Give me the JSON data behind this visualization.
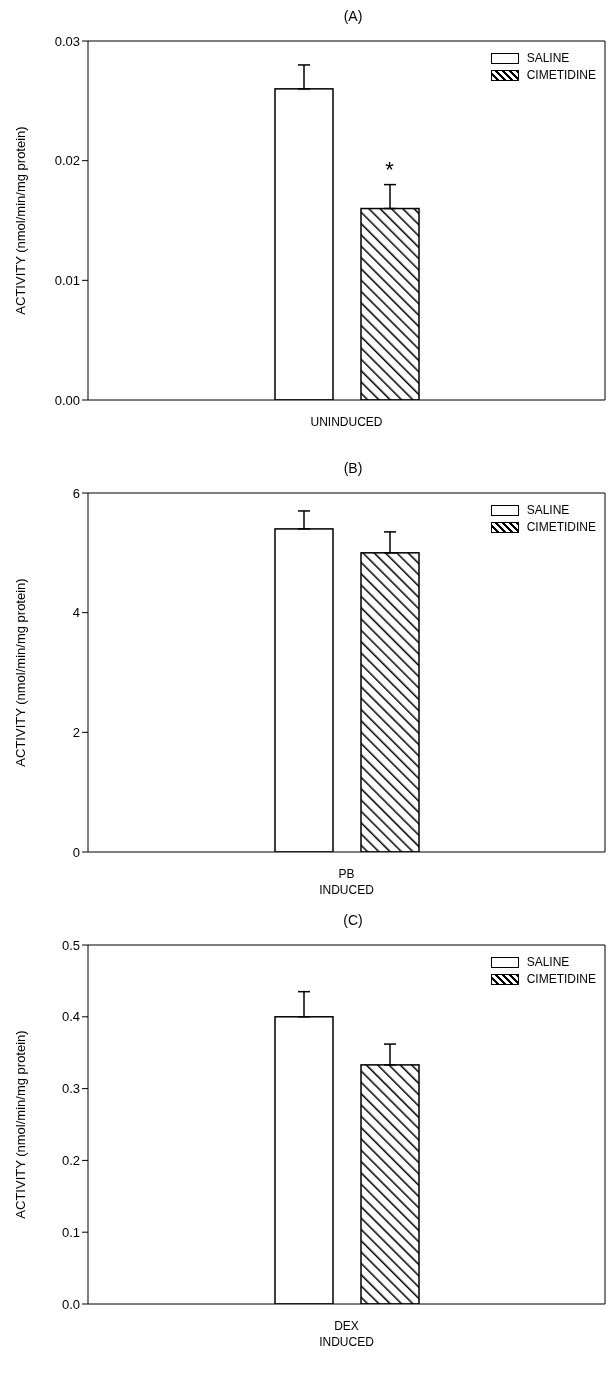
{
  "chart_data": [
    {
      "type": "bar",
      "title": "(A)",
      "ylabel": "ACTIVITY (nmol/min/mg protein)",
      "categories": [
        "UNINDUCED"
      ],
      "series": [
        {
          "name": "SALINE",
          "color": "#ffffff",
          "values": [
            0.026
          ],
          "errors": [
            [
              0.026,
              0.028
            ]
          ]
        },
        {
          "name": "CIMETIDINE",
          "color": "#000000",
          "values": [
            0.016
          ],
          "errors": [
            [
              0.016,
              0.018
            ]
          ]
        }
      ],
      "ylim": [
        0,
        0.03
      ],
      "yticks": [
        {
          "value": 0,
          "label": "0.00"
        },
        {
          "value": 0.01,
          "label": "0.01"
        },
        {
          "value": 0.02,
          "label": "0.02"
        },
        {
          "value": 0.03,
          "label": "0.03"
        }
      ],
      "legend": "top right",
      "annotations": [
        "*"
      ]
    },
    {
      "type": "bar",
      "title": "(B)",
      "ylabel": "ACTIVITY (nmol/min/mg protein)",
      "categories": [
        "PB INDUCED"
      ],
      "series": [
        {
          "name": "SALINE",
          "color": "#ffffff",
          "values": [
            5.4
          ],
          "errors": [
            [
              5.4,
              5.7
            ]
          ]
        },
        {
          "name": "CIMETIDINE",
          "color": "#000000",
          "values": [
            5.0
          ],
          "errors": [
            [
              5.0,
              5.35
            ]
          ]
        }
      ],
      "ylim": [
        0,
        6
      ],
      "yticks": [
        0,
        2,
        4,
        6
      ],
      "legend": "top right"
    },
    {
      "type": "bar",
      "title": "(C)",
      "ylabel": "ACTIVITY (nmol/min/mg protein)",
      "categories": [
        "DEX INDUCED"
      ],
      "series": [
        {
          "name": "SALINE",
          "color": "#ffffff",
          "values": [
            0.4
          ],
          "errors": [
            [
              0.4,
              0.435
            ]
          ]
        },
        {
          "name": "CIMETIDINE",
          "color": "#000000",
          "values": [
            0.333
          ],
          "errors": [
            [
              0.333,
              0.362
            ]
          ]
        }
      ],
      "ylim": [
        0,
        0.5
      ],
      "yticks": [
        {
          "value": 0,
          "label": "0.0"
        },
        0.1,
        0.2,
        0.3,
        0.4,
        0.5
      ],
      "legend": "top right"
    }
  ]
}
